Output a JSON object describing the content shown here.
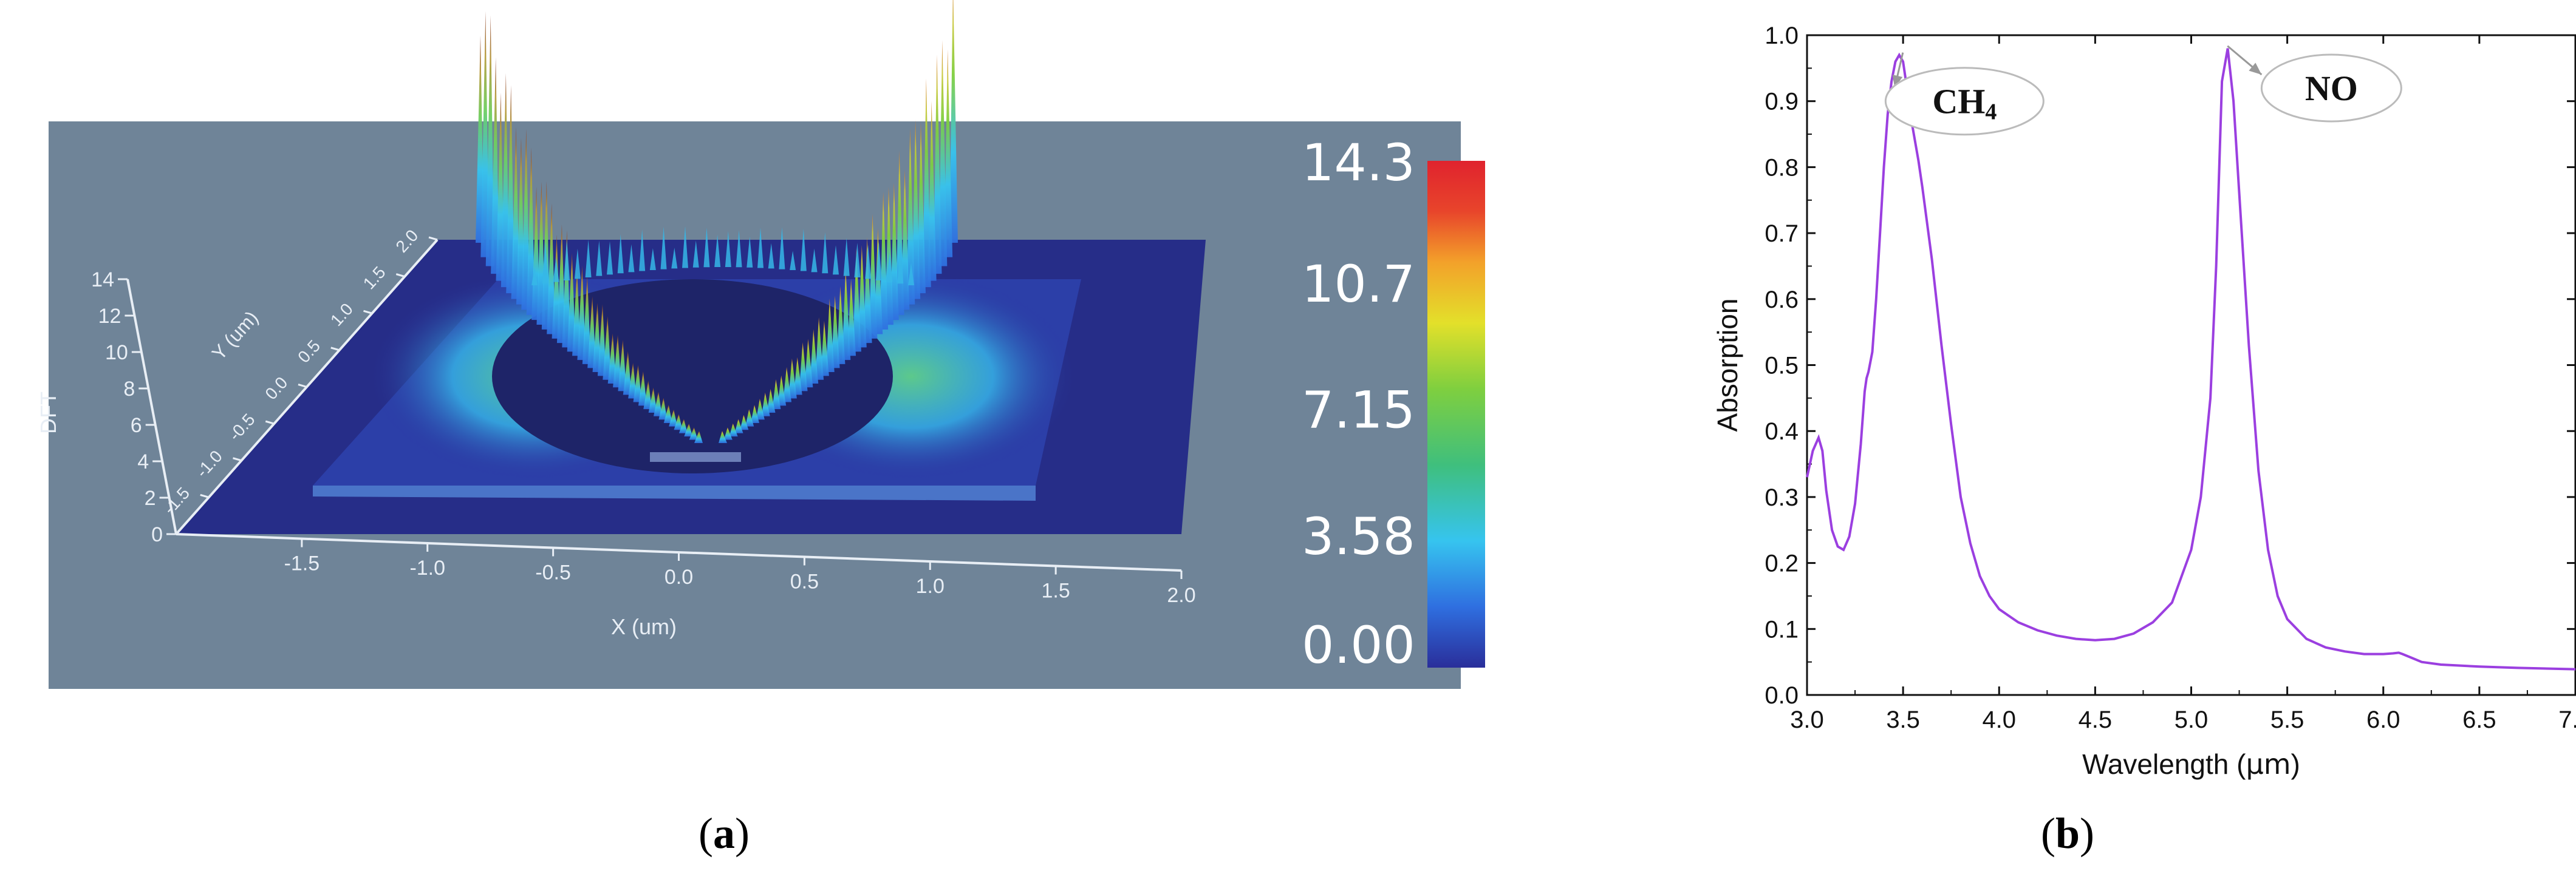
{
  "panel_a": {
    "subfigure_label": "a",
    "chart_data": {
      "type": "heatmap",
      "projection": "3d-surface",
      "x_axis": {
        "label": "X (um)",
        "ticks": [
          "-1.5",
          "-1.0",
          "-0.5",
          "0.0",
          "0.5",
          "1.0",
          "1.5",
          "2.0"
        ],
        "range": [
          -2.0,
          2.0
        ]
      },
      "y_axis": {
        "label": "Y (um)",
        "ticks": [
          "-1.5",
          "-1.0",
          "-0.5",
          "0.0",
          "0.5",
          "1.0",
          "1.5",
          "2.0"
        ],
        "range": [
          -2.0,
          2.0
        ]
      },
      "z_axis": {
        "label": "DFT",
        "ticks": [
          "0",
          "2",
          "4",
          "6",
          "8",
          "10",
          "12",
          "14"
        ],
        "range": [
          0,
          14
        ]
      },
      "colorbar": {
        "ticks": [
          "14.3",
          "10.7",
          "7.15",
          "3.58",
          "0.00"
        ],
        "range": [
          0.0,
          14.3
        ],
        "colormap": [
          "#2a2e9a",
          "#2f6fe0",
          "#36c4ef",
          "#3fbf7d",
          "#7fcf3f",
          "#e3e02a",
          "#f3a12a",
          "#e8452b",
          "#e0232e"
        ]
      },
      "background_color": "#6f8498",
      "peak_regions": [
        {
          "x": -0.65,
          "y": 1.7,
          "z": 14.3
        },
        {
          "x": 1.3,
          "y": 1.7,
          "z": 13.5
        }
      ]
    }
  },
  "panel_b": {
    "subfigure_label": "b",
    "chart_data": {
      "type": "line",
      "xlabel_prefix": "Wavelength (",
      "xlabel_unit": "μm",
      "xlabel_suffix": ")",
      "ylabel": "Absorption",
      "xlim": [
        3.0,
        7.0
      ],
      "ylim": [
        0.0,
        1.0
      ],
      "xticks": [
        "3.0",
        "3.5",
        "4.0",
        "4.5",
        "5.0",
        "5.5",
        "6.0",
        "6.5",
        "7.0"
      ],
      "yticks": [
        "0.0",
        "0.1",
        "0.2",
        "0.3",
        "0.4",
        "0.5",
        "0.6",
        "0.7",
        "0.8",
        "0.9",
        "1.0"
      ],
      "series": [
        {
          "color": "#9b3fe0",
          "x": [
            3.0,
            3.03,
            3.06,
            3.08,
            3.1,
            3.13,
            3.16,
            3.19,
            3.22,
            3.25,
            3.28,
            3.3,
            3.31,
            3.32,
            3.34,
            3.36,
            3.38,
            3.4,
            3.42,
            3.44,
            3.46,
            3.48,
            3.5,
            3.52,
            3.55,
            3.58,
            3.6,
            3.65,
            3.7,
            3.75,
            3.8,
            3.85,
            3.9,
            3.95,
            4.0,
            4.1,
            4.2,
            4.3,
            4.4,
            4.5,
            4.6,
            4.7,
            4.8,
            4.9,
            5.0,
            5.05,
            5.1,
            5.13,
            5.16,
            5.19,
            5.22,
            5.25,
            5.3,
            5.35,
            5.4,
            5.45,
            5.5,
            5.6,
            5.7,
            5.8,
            5.9,
            6.0,
            6.05,
            6.08,
            6.1,
            6.15,
            6.2,
            6.3,
            6.5,
            6.7,
            7.0
          ],
          "y": [
            0.33,
            0.37,
            0.39,
            0.37,
            0.31,
            0.25,
            0.225,
            0.22,
            0.24,
            0.29,
            0.38,
            0.46,
            0.48,
            0.49,
            0.52,
            0.6,
            0.7,
            0.8,
            0.88,
            0.93,
            0.96,
            0.97,
            0.96,
            0.92,
            0.86,
            0.81,
            0.77,
            0.66,
            0.53,
            0.41,
            0.3,
            0.23,
            0.18,
            0.15,
            0.13,
            0.11,
            0.098,
            0.09,
            0.085,
            0.083,
            0.085,
            0.093,
            0.11,
            0.14,
            0.22,
            0.3,
            0.45,
            0.65,
            0.93,
            0.98,
            0.9,
            0.76,
            0.53,
            0.34,
            0.22,
            0.15,
            0.115,
            0.085,
            0.072,
            0.066,
            0.062,
            0.062,
            0.063,
            0.064,
            0.062,
            0.056,
            0.05,
            0.046,
            0.043,
            0.041,
            0.039
          ]
        }
      ],
      "annotations": [
        {
          "text_main": "CH",
          "text_sub": "4",
          "point_x": 3.48,
          "point_y": 0.97,
          "label_x": 3.82,
          "label_y": 0.9
        },
        {
          "text_main": "NO",
          "text_sub": "",
          "point_x": 5.17,
          "point_y": 0.98,
          "label_x": 5.73,
          "label_y": 0.92
        }
      ]
    }
  }
}
